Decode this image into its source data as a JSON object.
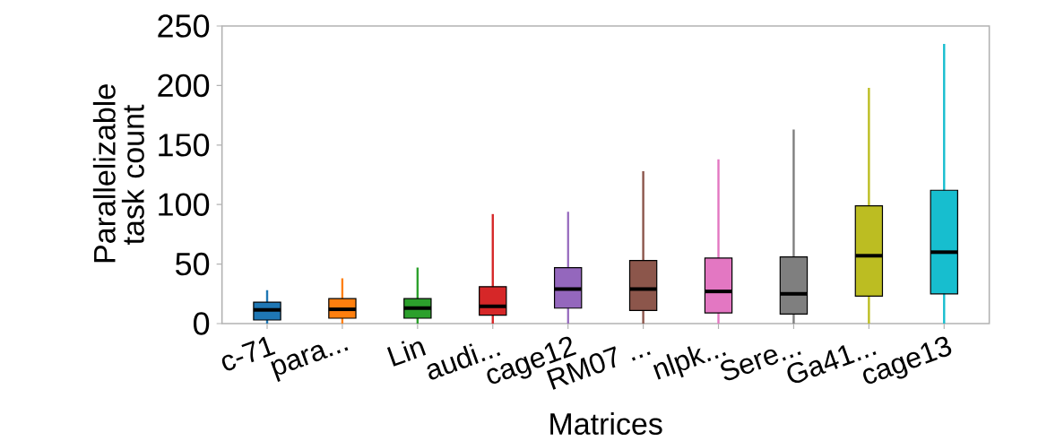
{
  "chart_data": {
    "type": "box",
    "xlabel": "Matrices",
    "ylabel": "Parallelizable task count",
    "categories": [
      "c-71",
      "para...",
      "Lin",
      "audi...",
      "cage12",
      "RM07 ...",
      "nlpk...",
      "Sere...",
      "Ga41...",
      "cage13"
    ],
    "colors": [
      "#1f77b4",
      "#ff7f0e",
      "#2ca02c",
      "#d62728",
      "#9467bd",
      "#8c564b",
      "#e377c2",
      "#7f7f7f",
      "#bcbd22",
      "#17becf"
    ],
    "boxes": [
      {
        "low": 0,
        "q1": 3,
        "median": 11.5,
        "q3": 18,
        "high": 28
      },
      {
        "low": 0,
        "q1": 4.5,
        "median": 12,
        "q3": 21,
        "high": 38
      },
      {
        "low": 0,
        "q1": 4.5,
        "median": 13,
        "q3": 21,
        "high": 47
      },
      {
        "low": 0,
        "q1": 7,
        "median": 14.5,
        "q3": 31,
        "high": 92
      },
      {
        "low": 0,
        "q1": 13,
        "median": 29,
        "q3": 47,
        "high": 94
      },
      {
        "low": 0,
        "q1": 11,
        "median": 29,
        "q3": 53,
        "high": 128
      },
      {
        "low": 0,
        "q1": 9,
        "median": 27,
        "q3": 55,
        "high": 138
      },
      {
        "low": 0,
        "q1": 8,
        "median": 25,
        "q3": 56,
        "high": 163
      },
      {
        "low": 0,
        "q1": 23,
        "median": 57,
        "q3": 99,
        "high": 198
      },
      {
        "low": 0,
        "q1": 25,
        "median": 60,
        "q3": 112,
        "high": 235
      }
    ],
    "ylim": [
      0,
      250
    ],
    "yticks": [
      0,
      50,
      100,
      150,
      200,
      250
    ],
    "grid": false
  }
}
